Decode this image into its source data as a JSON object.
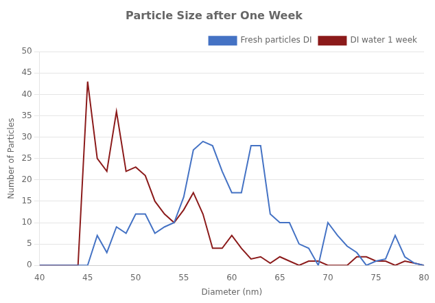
{
  "chart_data": {
    "type": "line",
    "title": "Particle Size after One Week",
    "xlabel": "Diameter (nm)",
    "ylabel": "Number of Particles",
    "x": [
      40,
      41,
      42,
      43,
      44,
      45,
      46,
      47,
      48,
      49,
      50,
      51,
      52,
      53,
      54,
      55,
      56,
      57,
      58,
      59,
      60,
      61,
      62,
      63,
      64,
      65,
      66,
      67,
      68,
      69,
      70,
      71,
      72,
      73,
      74,
      75,
      76,
      77,
      78,
      79,
      80
    ],
    "series": [
      {
        "name": "Fresh particles DI",
        "color": "#4472C4",
        "values": [
          0,
          0,
          0,
          0,
          0,
          0,
          7,
          3,
          9,
          7.5,
          12,
          12,
          7.5,
          9,
          10,
          16,
          27,
          29,
          28,
          22,
          17,
          17,
          28,
          28,
          12,
          10,
          10,
          5,
          4,
          0,
          10,
          7,
          4.5,
          3,
          0,
          1,
          1.5,
          7,
          2,
          0.5,
          0
        ]
      },
      {
        "name": "DI water 1 week",
        "color": "#8B1A1A",
        "values": [
          0,
          0,
          0,
          0,
          0,
          43,
          25,
          22,
          36,
          22,
          23,
          21,
          15,
          12,
          10,
          13,
          17,
          12,
          4,
          4,
          7,
          4,
          1.5,
          2,
          0.5,
          2,
          1,
          0,
          1,
          1,
          0,
          0,
          0,
          2,
          2,
          1,
          1,
          0,
          1,
          0.5,
          0
        ]
      }
    ],
    "xlim": [
      40,
      80
    ],
    "xticks": [
      40,
      45,
      50,
      55,
      60,
      65,
      70,
      75,
      80
    ],
    "ylim": [
      0,
      50
    ],
    "yticks": [
      0,
      5,
      10,
      15,
      20,
      25,
      30,
      35,
      40,
      45,
      50
    ],
    "grid": "y",
    "legend": "upper right"
  }
}
